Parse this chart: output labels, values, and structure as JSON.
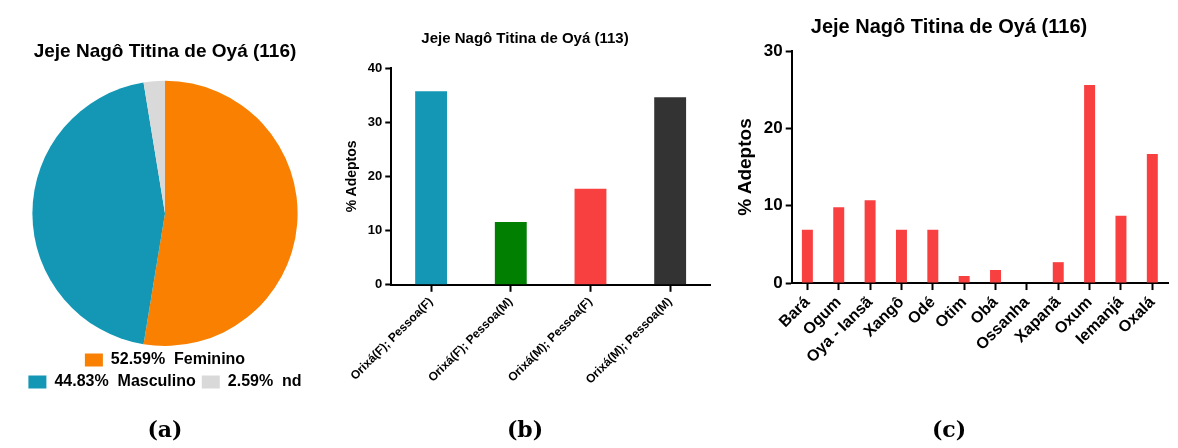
{
  "chart_data": [
    {
      "type": "pie",
      "title": "Jeje Nagô Titina de Oyá (116)",
      "categories": [
        "Feminino",
        "Masculino",
        "nd"
      ],
      "values": [
        52.59,
        44.83,
        2.59
      ],
      "value_labels": [
        "52.59%",
        "44.83%",
        "2.59%"
      ],
      "colors": [
        "#f98000",
        "#1397b4",
        "#d9d9d9"
      ],
      "legend": "bottom",
      "annotations": [
        "(a)"
      ]
    },
    {
      "type": "bar",
      "title": "Jeje Nagô Titina de Oyá (113)",
      "ylabel": "% Adeptos",
      "categories": [
        "Orixá(F); Pessoa(F)",
        "Orixá(F); Pessoa(M)",
        "Orixá(M); Pessoa(F)",
        "Orixá(M); Pessoa(M)"
      ],
      "values": [
        35.7,
        11.6,
        17.7,
        34.6
      ],
      "colors": [
        "#1397b4",
        "#007f00",
        "#f84040",
        "#333333"
      ],
      "ylim": [
        0,
        40
      ],
      "yticks": [
        0,
        10,
        20,
        30,
        40
      ],
      "grid": false,
      "annotations": [
        "(b)"
      ]
    },
    {
      "type": "bar",
      "title": "Jeje Nagô Titina de Oyá (116)",
      "ylabel": "% Adeptos",
      "categories": [
        "Bará",
        "Ogum",
        "Oya - Iansã",
        "Xangô",
        "Odé",
        "Otim",
        "Obá",
        "Ossanha",
        "Xapanã",
        "Oxum",
        "Iemanjá",
        "Oxalá"
      ],
      "values": [
        6.9,
        9.8,
        10.7,
        6.9,
        6.9,
        0.9,
        1.7,
        0,
        2.7,
        25.6,
        8.7,
        16.7
      ],
      "color": "#f84040",
      "ylim": [
        0,
        30
      ],
      "yticks": [
        0,
        10,
        20,
        30
      ],
      "grid": false,
      "annotations": [
        "(c)"
      ]
    }
  ]
}
